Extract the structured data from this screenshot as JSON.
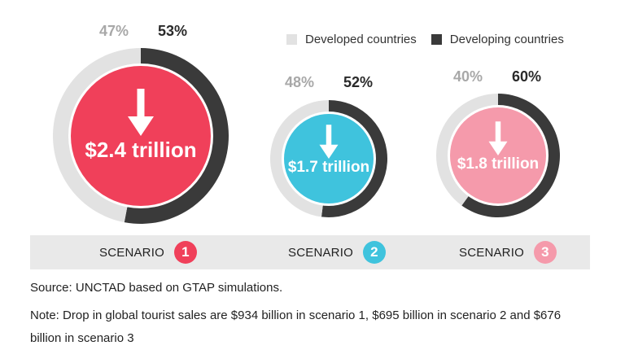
{
  "chart_data": {
    "type": "pie",
    "legend": [
      {
        "label": "Developed countries",
        "color": "#e2e2e2"
      },
      {
        "label": "Developing countries",
        "color": "#3a3a3a"
      }
    ],
    "legend_position": "top-right",
    "scenarios": [
      {
        "scenario": "SCENARIO",
        "number": "1",
        "total": "$2.4 trillion",
        "developed": 47,
        "developing": 53,
        "developed_label": "47%",
        "developing_label": "53%",
        "color": "#f0405a"
      },
      {
        "scenario": "SCENARIO",
        "number": "2",
        "total": "$1.7 trillion",
        "developed": 48,
        "developing": 52,
        "developed_label": "48%",
        "developing_label": "52%",
        "color": "#3fc3dd"
      },
      {
        "scenario": "SCENARIO",
        "number": "3",
        "total": "$1.8 trillion",
        "developed": 40,
        "developing": 60,
        "developed_label": "40%",
        "developing_label": "60%",
        "color": "#f59aab"
      }
    ]
  },
  "source": "Source: UNCTAD based on GTAP simulations.",
  "note": "Note: Drop in global tourist sales are $934 billion in scenario 1, $695 billion in scenario 2 and $676 billion in scenario 3",
  "colors": {
    "developed": "#e2e2e2",
    "developing": "#3a3a3a",
    "inner_ring": "#ffffff",
    "text_grey": "#a8a8a8",
    "text_dark": "#2a2a2a"
  }
}
